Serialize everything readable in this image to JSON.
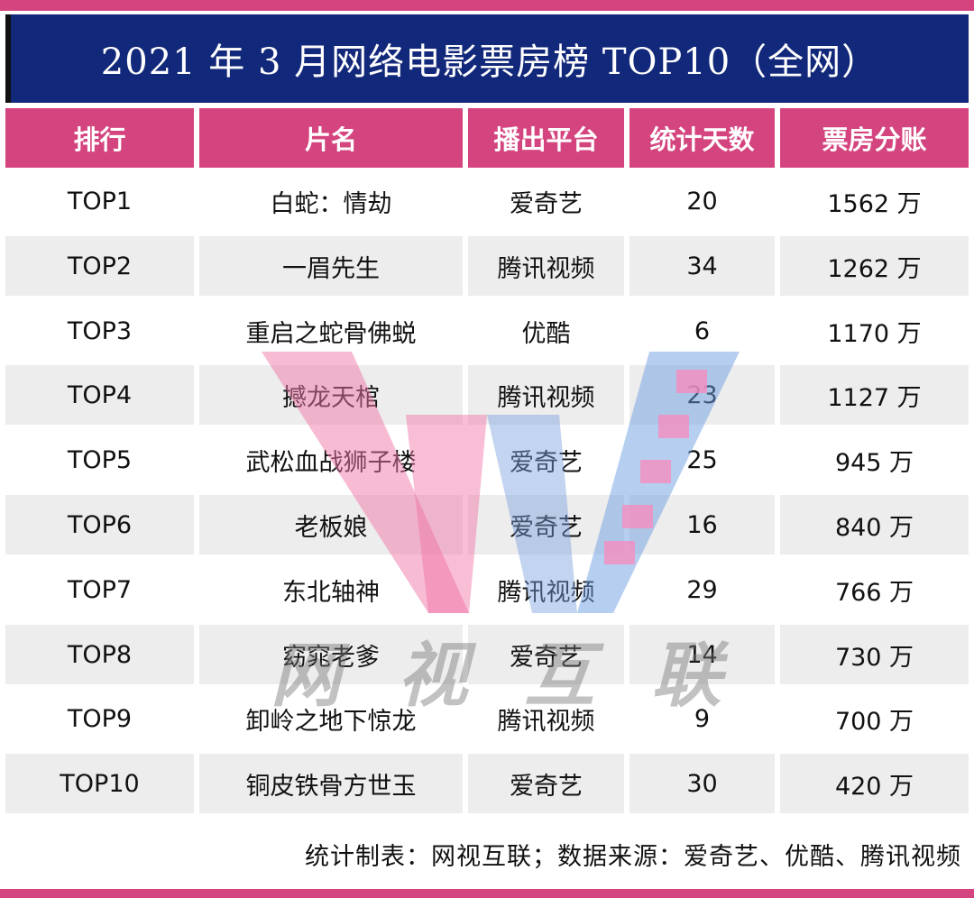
{
  "title": "2021 年 3 月网络电影票房榜 TOP10（全网）",
  "colors": {
    "brand_pink": "#d4457f",
    "header_navy": "#12287a",
    "row_alt": "#ededed"
  },
  "table": {
    "headers": [
      "排行",
      "片名",
      "播出平台",
      "统计天数",
      "票房分账"
    ],
    "rows": [
      [
        "TOP1",
        "白蛇：情劫",
        "爱奇艺",
        "20",
        "1562 万"
      ],
      [
        "TOP2",
        "一眉先生",
        "腾讯视频",
        "34",
        "1262 万"
      ],
      [
        "TOP3",
        "重启之蛇骨佛蜕",
        "优酷",
        "6",
        "1170 万"
      ],
      [
        "TOP4",
        "撼龙天棺",
        "腾讯视频",
        "23",
        "1127 万"
      ],
      [
        "TOP5",
        "武松血战狮子楼",
        "爱奇艺",
        "25",
        "945 万"
      ],
      [
        "TOP6",
        "老板娘",
        "爱奇艺",
        "16",
        "840 万"
      ],
      [
        "TOP7",
        "东北轴神",
        "腾讯视频",
        "29",
        "766 万"
      ],
      [
        "TOP8",
        "窈窕老爹",
        "爱奇艺",
        "14",
        "730 万"
      ],
      [
        "TOP9",
        "卸岭之地下惊龙",
        "腾讯视频",
        "9",
        "700 万"
      ],
      [
        "TOP10",
        "铜皮铁骨方世玉",
        "爱奇艺",
        "30",
        "420 万"
      ]
    ]
  },
  "footer": "统计制表：网视互联；数据来源：爱奇艺、优酷、腾讯视频",
  "watermark": {
    "logo": "W-logo",
    "chars": [
      "网",
      "视",
      "互",
      "联"
    ]
  }
}
